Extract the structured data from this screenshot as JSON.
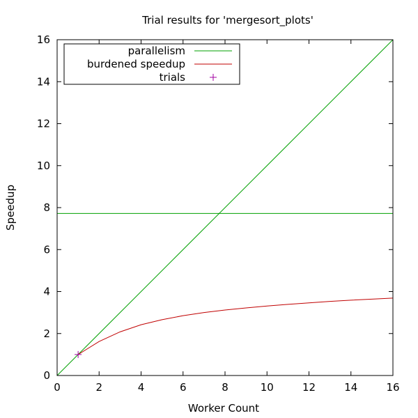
{
  "chart_data": {
    "type": "line",
    "title": "Trial results for 'mergesort_plots'",
    "xlabel": "Worker Count",
    "ylabel": "Speedup",
    "xlim": [
      0,
      16
    ],
    "ylim": [
      0,
      16
    ],
    "xticks": [
      0,
      2,
      4,
      6,
      8,
      10,
      12,
      14,
      16
    ],
    "yticks": [
      0,
      2,
      4,
      6,
      8,
      10,
      12,
      14,
      16
    ],
    "legend_position": "top-left",
    "grid": false,
    "series": [
      {
        "name": "parallelism",
        "style": "line",
        "color": "#00a000",
        "x": [
          0,
          16
        ],
        "y": [
          0,
          16
        ]
      },
      {
        "name": "parallelism",
        "style": "line",
        "color": "#00a000",
        "show_in_legend": false,
        "x": [
          0,
          16
        ],
        "y": [
          7.72,
          7.72
        ]
      },
      {
        "name": "burdened speedup",
        "style": "line",
        "color": "#c00000",
        "x": [
          1,
          2,
          3,
          4,
          5,
          6,
          7,
          8,
          9,
          10,
          11,
          12,
          13,
          14,
          15,
          16
        ],
        "y": [
          1.0,
          1.62,
          2.08,
          2.42,
          2.66,
          2.85,
          3.0,
          3.12,
          3.22,
          3.31,
          3.39,
          3.46,
          3.53,
          3.59,
          3.64,
          3.69
        ]
      },
      {
        "name": "trials",
        "style": "points",
        "marker": "plus",
        "color": "#a000a0",
        "x": [
          1
        ],
        "y": [
          1
        ]
      }
    ]
  }
}
